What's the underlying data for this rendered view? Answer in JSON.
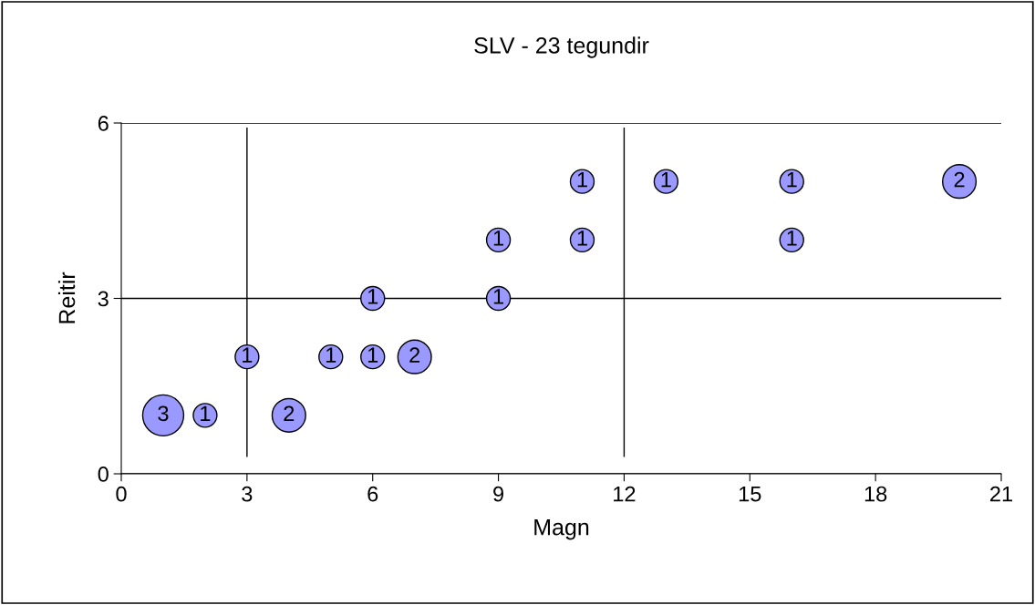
{
  "chart_data": {
    "type": "bubble",
    "title": "SLV - 23 tegundir",
    "xlabel": "Magn",
    "ylabel": "Reitir",
    "x": [
      1,
      2,
      3,
      4,
      5,
      6,
      6,
      7,
      9,
      9,
      11,
      11,
      13,
      16,
      16,
      20
    ],
    "values": [
      1,
      1,
      2,
      1,
      2,
      2,
      3,
      2,
      3,
      4,
      4,
      5,
      5,
      5,
      4,
      5
    ],
    "sizes": [
      3,
      1,
      1,
      2,
      1,
      1,
      1,
      2,
      1,
      1,
      1,
      1,
      1,
      1,
      1,
      2
    ],
    "value_labels": [
      "3",
      "1",
      "1",
      "2",
      "1",
      "1",
      "1",
      "2",
      "1",
      "1",
      "1",
      "1",
      "1",
      "1",
      "1",
      "2"
    ],
    "color": "#9999ff",
    "xlim": [
      0,
      21
    ],
    "xticks": [
      0,
      3,
      6,
      9,
      12,
      15,
      18,
      21
    ],
    "ylim": [
      0,
      6
    ],
    "yticks": [
      0,
      3,
      6
    ],
    "grid": "y",
    "ref_lines": [
      {
        "axis": "x",
        "value": 3,
        "label": null,
        "color": "#000000"
      },
      {
        "axis": "x",
        "value": 12,
        "label": null,
        "color": "#000000"
      }
    ]
  }
}
